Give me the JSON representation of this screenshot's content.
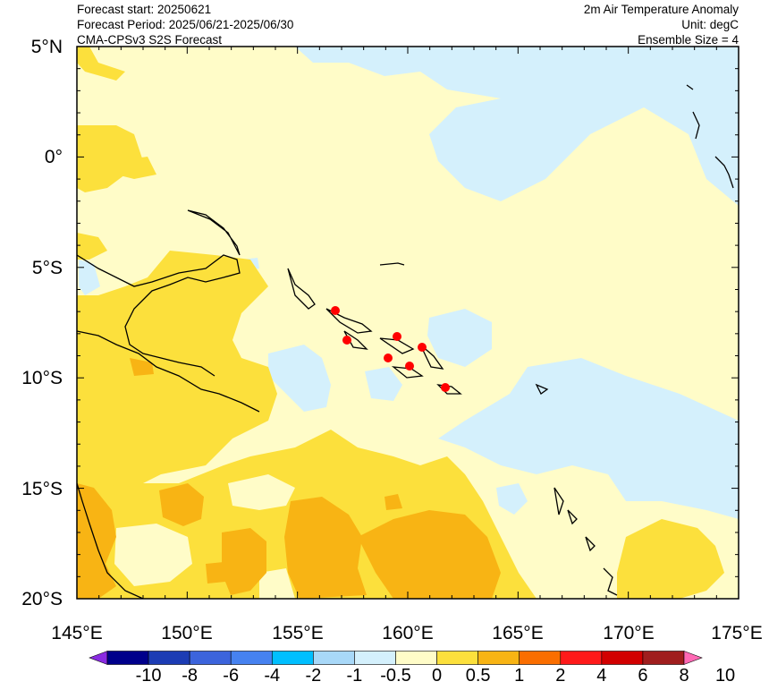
{
  "header": {
    "left": [
      "Forecast start: 20250621",
      "Forecast Period: 2025/06/21-2025/06/30",
      "CMA-CPSv3 S2S Forecast"
    ],
    "right": [
      "2m Air Temperature Anomaly",
      "Unit: degC",
      "Ensemble Size = 4"
    ]
  },
  "map": {
    "lat_labels": [
      "5°N",
      "0°",
      "5°S",
      "10°S",
      "15°S",
      "20°S"
    ],
    "lon_labels": [
      "145°E",
      "150°E",
      "155°E",
      "160°E",
      "165°E",
      "170°E",
      "175°E"
    ],
    "markers": "red-station-dots"
  },
  "colorbar": {
    "labels": [
      "-10",
      "-8",
      "-6",
      "-4",
      "-2",
      "-1",
      "-0.5",
      "0",
      "0.5",
      "1",
      "2",
      "4",
      "6",
      "8",
      "10"
    ],
    "colors": [
      "#8a2be2",
      "#00008b",
      "#1c3cb4",
      "#3c64dc",
      "#4682f0",
      "#00bfff",
      "#a8d8f8",
      "#d4f0fc",
      "#fffcc8",
      "#fce03c",
      "#f8b414",
      "#fa6e00",
      "#ff1a1a",
      "#d20000",
      "#a01e1e",
      "#ff69b4"
    ]
  }
}
